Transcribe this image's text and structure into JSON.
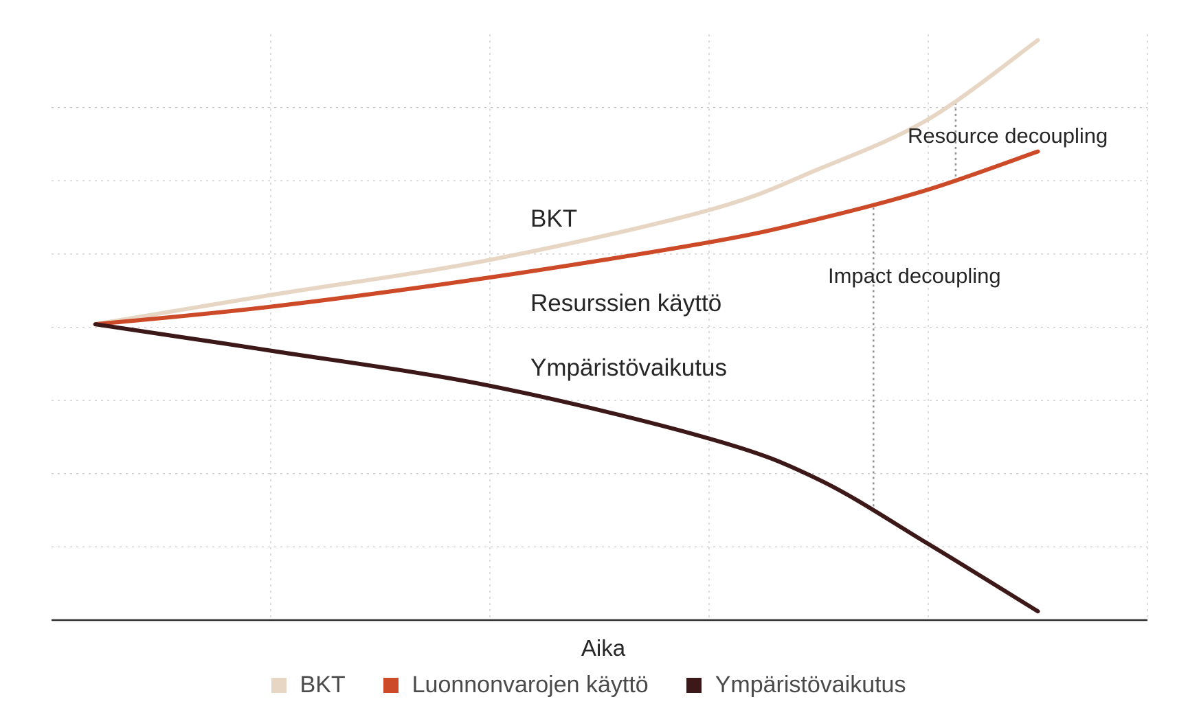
{
  "chart_data": {
    "type": "line",
    "xlabel": "Aika",
    "ylabel": "",
    "xlim": [
      0,
      100
    ],
    "ylim": [
      0,
      100
    ],
    "x_ticks": [
      20,
      40,
      60,
      80,
      100
    ],
    "y_ticks": [
      12.5,
      25,
      37.5,
      50,
      62.5,
      75,
      87.5
    ],
    "grid": true,
    "legend_placement": "bottom",
    "series": [
      {
        "key": "bkt",
        "name": "BKT",
        "color": "#e8d6c5",
        "inline_label": "BKT",
        "x": [
          4,
          20,
          40,
          60,
          70,
          80,
          90
        ],
        "y": [
          50.5,
          55.5,
          61.5,
          70,
          77,
          85.5,
          99
        ]
      },
      {
        "key": "resurssit",
        "name": "Luonnonvarojen käyttö",
        "color": "#cd4a28",
        "inline_label": "Resurssien käyttö",
        "x": [
          4,
          20,
          40,
          60,
          70,
          80,
          90
        ],
        "y": [
          50.5,
          53.5,
          58.5,
          64.5,
          68.5,
          73.5,
          80
        ]
      },
      {
        "key": "ymparisto",
        "name": "Ympäristövaikutus",
        "color": "#3d1818",
        "inline_label": "Ympäristövaikutus",
        "x": [
          4,
          20,
          40,
          60,
          70,
          80,
          90
        ],
        "y": [
          50.5,
          46,
          40,
          31,
          24,
          13,
          1.5
        ]
      }
    ],
    "annotations": [
      {
        "text": "Resource decoupling",
        "x": 82.5,
        "from_series": "bkt",
        "to_series": "resurssit"
      },
      {
        "text": "Impact decoupling",
        "x": 75,
        "from_series": "resurssit",
        "to_series": "ymparisto"
      }
    ]
  }
}
